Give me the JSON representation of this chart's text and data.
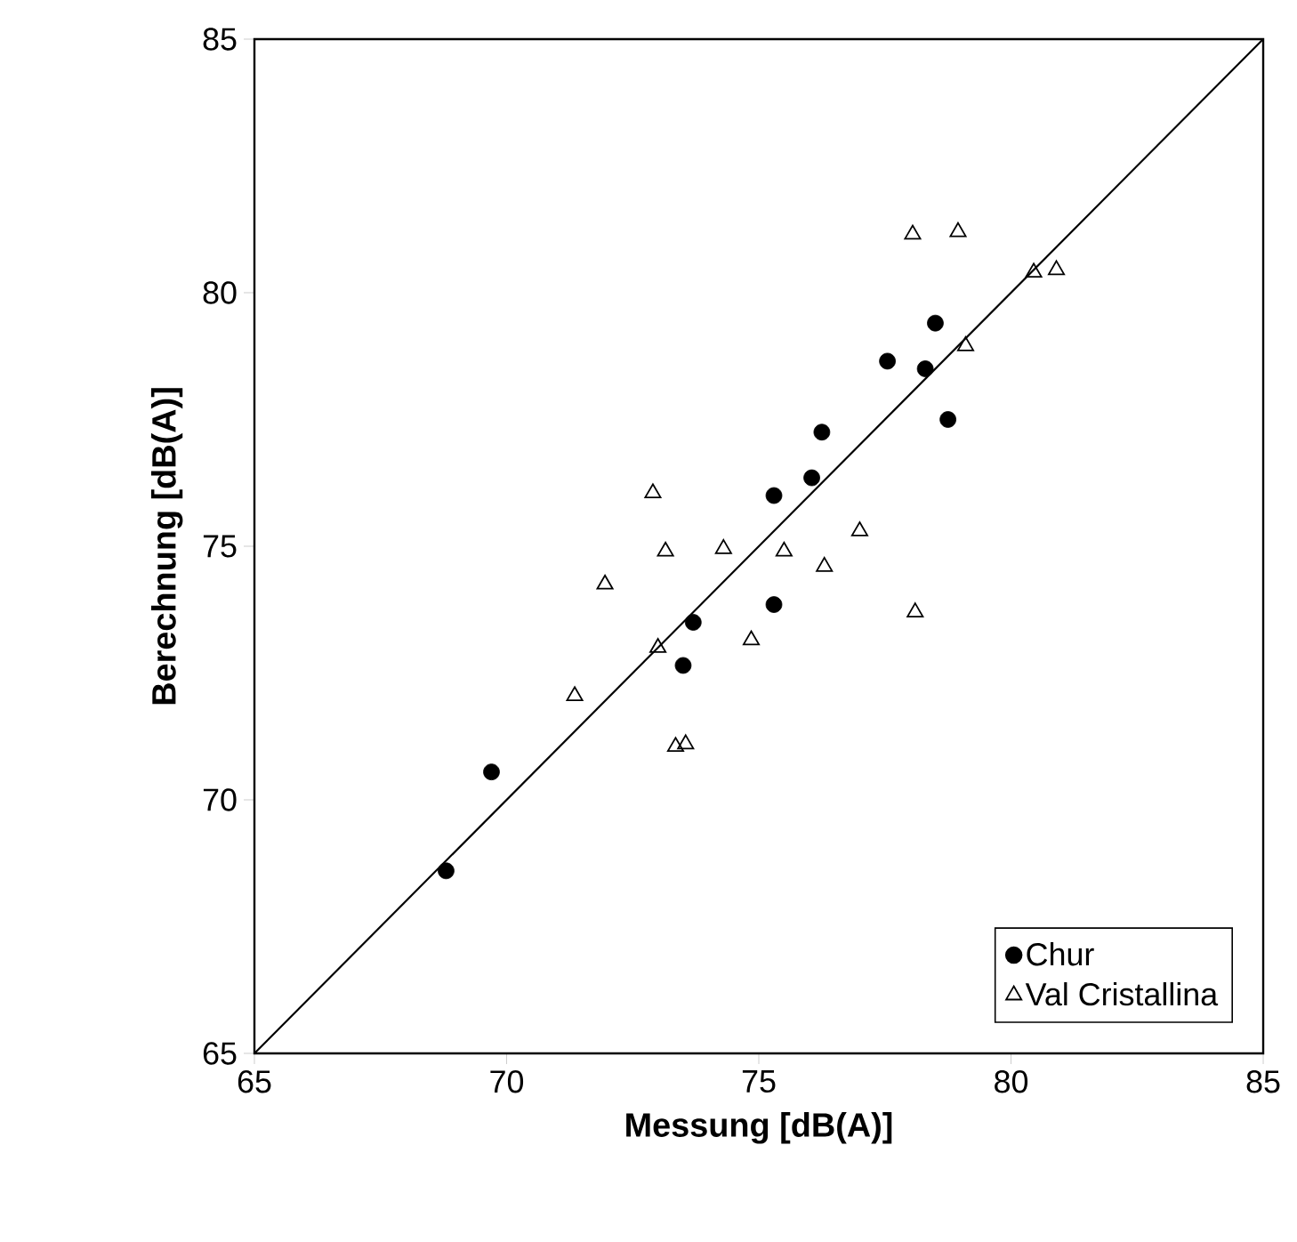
{
  "chart_data": {
    "type": "scatter",
    "xlabel": "Messung [dB(A)]",
    "ylabel": "Berechnung [dB(A)]",
    "xlim": [
      65,
      85
    ],
    "ylim": [
      65,
      85
    ],
    "xticks": [
      65,
      70,
      75,
      80,
      85
    ],
    "yticks": [
      65,
      70,
      75,
      80,
      85
    ],
    "legend": "bottom right",
    "grid": false,
    "series": [
      {
        "name": "Chur",
        "color": "#000000",
        "marker": "circle",
        "x": [
          68.8,
          69.7,
          73.5,
          73.7,
          75.3,
          75.3,
          76.05,
          76.25,
          77.55,
          78.3,
          78.5,
          78.75
        ],
        "values": [
          68.6,
          70.55,
          72.65,
          73.5,
          73.85,
          76.0,
          76.35,
          77.25,
          78.65,
          78.5,
          79.4,
          77.5
        ]
      },
      {
        "name": "Val Cristallina",
        "color": "#000000",
        "marker": "triangle",
        "x": [
          71.35,
          71.95,
          72.9,
          73.0,
          73.15,
          73.35,
          73.55,
          74.3,
          74.85,
          75.5,
          76.3,
          77.0,
          78.05,
          78.1,
          78.95,
          79.1,
          80.45,
          80.9
        ],
        "values": [
          72.05,
          74.25,
          76.05,
          73.0,
          74.9,
          71.05,
          71.1,
          74.95,
          73.15,
          74.9,
          74.6,
          75.3,
          81.15,
          73.7,
          81.2,
          78.95,
          80.4,
          80.45
        ]
      },
      {
        "type": "line",
        "color": "#000000",
        "marker": "none",
        "line_style": "solid",
        "x": [
          65,
          85
        ],
        "values": [
          65,
          85
        ]
      }
    ]
  }
}
